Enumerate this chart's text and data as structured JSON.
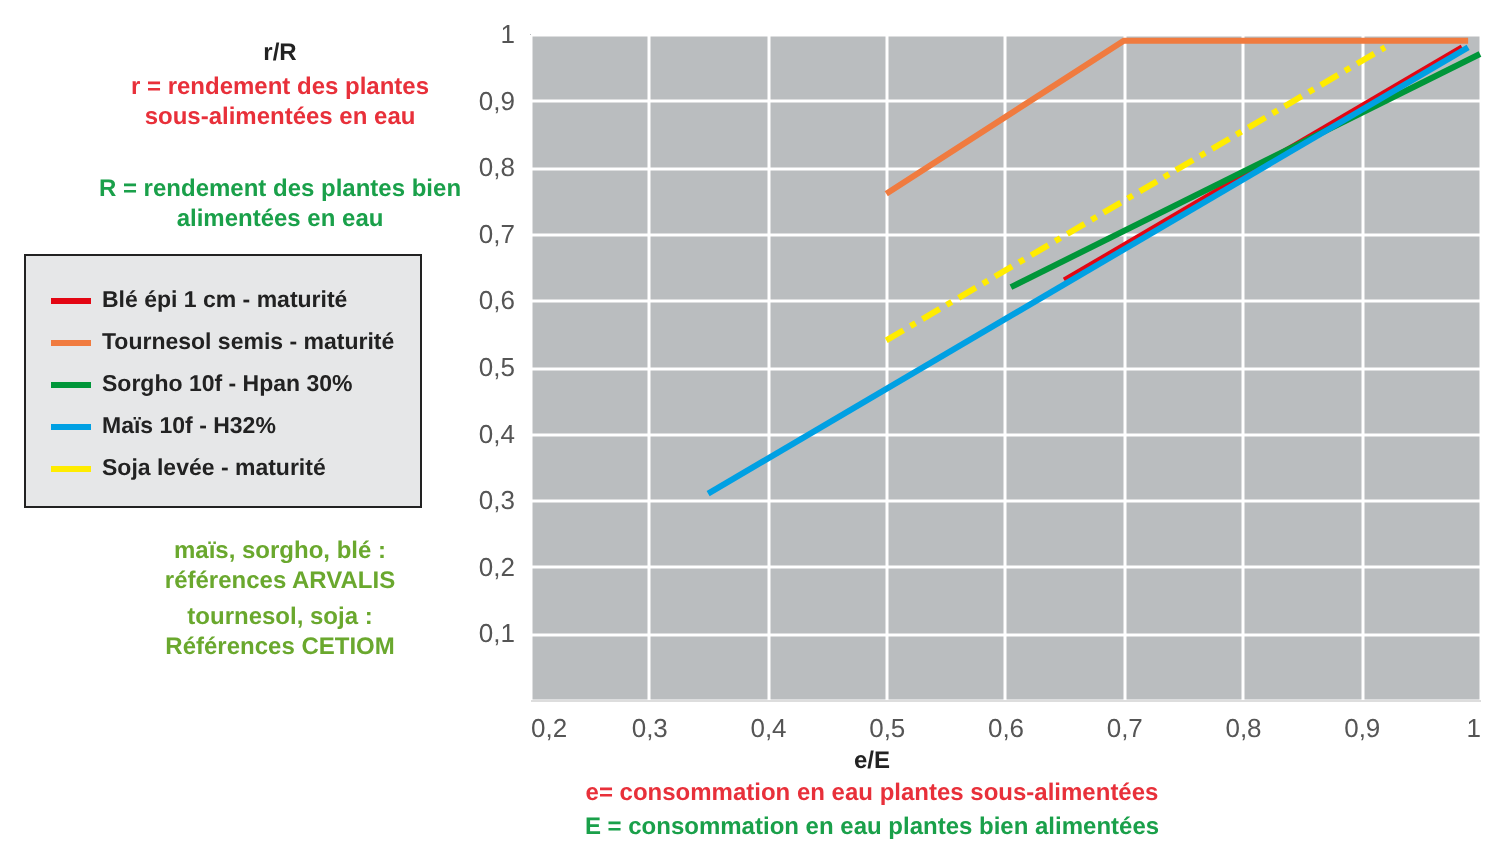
{
  "chart_data": {
    "type": "line",
    "xlabel": "e/E",
    "annotations": [
      "r/R",
      "r = rendement des plantes\nsous-alimentées en eau",
      "R = rendement des plantes bien\nalimentées en eau",
      "maïs, sorgho, blé :\nréférences ARVALIS",
      "tournesol, soja :\nRéférences CETIOM",
      "e= consommation en eau plantes sous-alimentées",
      "E = consommation en eau plantes bien  alimentées"
    ],
    "xlim": [
      0.2,
      1
    ],
    "ylim": [
      0,
      1
    ],
    "xticks": [
      {
        "value": 0.2,
        "label": "0,2"
      },
      {
        "value": 0.3,
        "label": "0,3"
      },
      {
        "value": 0.4,
        "label": "0,4"
      },
      {
        "value": 0.5,
        "label": "0,5"
      },
      {
        "value": 0.6,
        "label": "0,6"
      },
      {
        "value": 0.7,
        "label": "0,7"
      },
      {
        "value": 0.8,
        "label": "0,8"
      },
      {
        "value": 0.9,
        "label": "0,9"
      },
      1
    ],
    "yticks": [
      {
        "value": 0,
        "label": null
      },
      {
        "value": 0.1,
        "label": "0,1"
      },
      {
        "value": 0.2,
        "label": "0,2"
      },
      {
        "value": 0.3,
        "label": "0,3"
      },
      {
        "value": 0.4,
        "label": "0,4"
      },
      {
        "value": 0.5,
        "label": "0,5"
      },
      {
        "value": 0.6,
        "label": "0,6"
      },
      {
        "value": 0.7,
        "label": "0,7"
      },
      {
        "value": 0.8,
        "label": "0,8"
      },
      {
        "value": 0.9,
        "label": "0,9"
      },
      1
    ],
    "grid": true,
    "legend": "left",
    "marker": "none",
    "series": [
      {
        "name": "Blé épi 1 cm - maturité",
        "color": "#e30613",
        "x": [
          0.65,
          0.985
        ],
        "values": [
          0.63,
          0.98
        ]
      },
      {
        "name": "Tournesol semis - maturité",
        "color": "#f07b3f",
        "x": [
          0.5,
          0.7,
          0.99
        ],
        "values": [
          0.76,
          0.99,
          0.99
        ]
      },
      {
        "name": "Sorgho 10f - Hpan 30%",
        "color": "#009639",
        "x": [
          0.605,
          1.0
        ],
        "values": [
          0.62,
          0.97
        ]
      },
      {
        "name": "Maïs 10f - H32%",
        "color": "#00a0e3",
        "x": [
          0.35,
          0.99
        ],
        "values": [
          0.31,
          0.98
        ]
      },
      {
        "name": "Soja levée - maturité",
        "color": "#ffec00",
        "x": [
          0.5,
          0.92
        ],
        "values": [
          0.54,
          0.98
        ],
        "line_style": "dashed"
      }
    ]
  }
}
